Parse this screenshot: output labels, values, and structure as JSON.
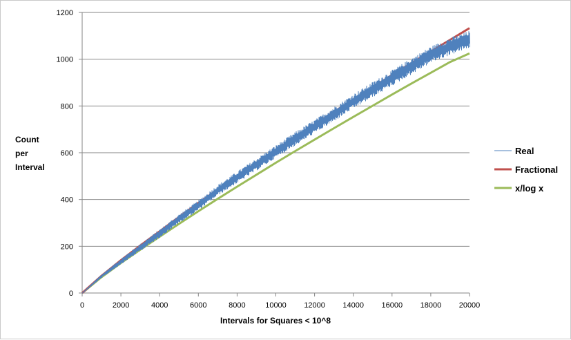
{
  "chart_data": {
    "type": "line",
    "xlabel": "Intervals for Squares < 10^8",
    "ylabel_lines": [
      "Count",
      "per",
      "Interval"
    ],
    "xlim": [
      0,
      20000
    ],
    "ylim": [
      0,
      1200
    ],
    "x_ticks": [
      0,
      2000,
      4000,
      6000,
      8000,
      10000,
      12000,
      14000,
      16000,
      18000,
      20000
    ],
    "y_ticks": [
      0,
      200,
      400,
      600,
      800,
      1000,
      1200
    ],
    "grid": "horizontal",
    "legend_position": "right",
    "series": [
      {
        "name": "Real",
        "color": "#4f81bd",
        "style": "noisy-thin",
        "x": [
          0,
          1000,
          2000,
          3000,
          4000,
          5000,
          6000,
          7000,
          8000,
          9000,
          10000,
          11000,
          12000,
          13000,
          14000,
          15000,
          16000,
          17000,
          18000,
          19000,
          20000
        ],
        "y": [
          0,
          72,
          135,
          195,
          255,
          318,
          375,
          440,
          495,
          550,
          605,
          660,
          712,
          765,
          820,
          870,
          920,
          970,
          1020,
          1055,
          1085
        ],
        "noise_amplitude": [
          0,
          6,
          10,
          14,
          16,
          18,
          20,
          22,
          24,
          25,
          26,
          28,
          28,
          30,
          30,
          32,
          32,
          34,
          34,
          36,
          36
        ]
      },
      {
        "name": "Fractional",
        "color": "#c0504d",
        "style": "thick",
        "x": [
          0,
          1000,
          2000,
          3000,
          4000,
          5000,
          6000,
          7000,
          8000,
          9000,
          10000,
          11000,
          12000,
          13000,
          14000,
          15000,
          16000,
          17000,
          18000,
          19000,
          20000
        ],
        "y": [
          0,
          74,
          140,
          203,
          264,
          325,
          385,
          443,
          500,
          557,
          612,
          667,
          721,
          775,
          828,
          880,
          932,
          983,
          1033,
          1083,
          1133
        ]
      },
      {
        "name": "x/log x",
        "color": "#9bbb59",
        "style": "thick",
        "x": [
          0,
          1000,
          2000,
          3000,
          4000,
          5000,
          6000,
          7000,
          8000,
          9000,
          10000,
          11000,
          12000,
          13000,
          14000,
          15000,
          16000,
          17000,
          18000,
          19000,
          20000
        ],
        "y": [
          0,
          68,
          128,
          185,
          241,
          296,
          350,
          403,
          455,
          506,
          557,
          607,
          656,
          705,
          753,
          801,
          849,
          896,
          942,
          988,
          1025
        ]
      }
    ]
  }
}
